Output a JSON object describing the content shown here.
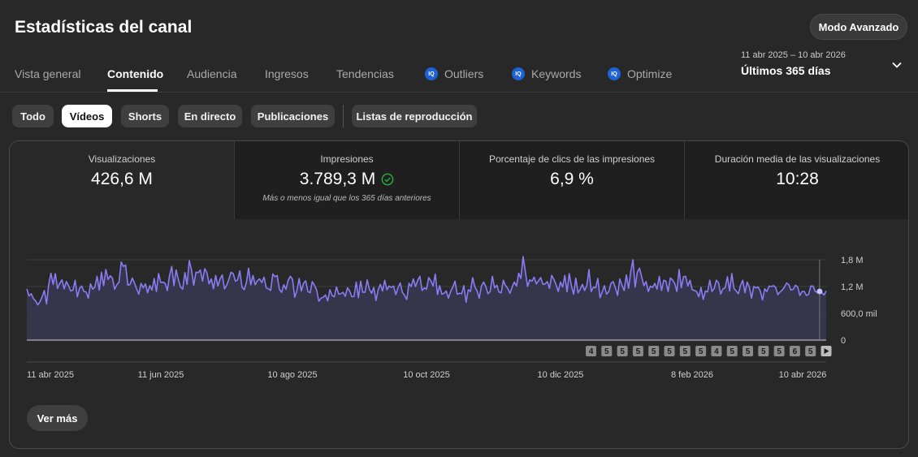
{
  "header": {
    "title": "Estadísticas del canal",
    "advanced_button": "Modo Avanzado"
  },
  "tabs": [
    {
      "label": "Vista general",
      "active": false,
      "badge": false
    },
    {
      "label": "Contenido",
      "active": true,
      "badge": false
    },
    {
      "label": "Audiencia",
      "active": false,
      "badge": false
    },
    {
      "label": "Ingresos",
      "active": false,
      "badge": false
    },
    {
      "label": "Tendencias",
      "active": false,
      "badge": false
    },
    {
      "label": "Outliers",
      "active": false,
      "badge": true
    },
    {
      "label": "Keywords",
      "active": false,
      "badge": true
    },
    {
      "label": "Optimize",
      "active": false,
      "badge": true
    }
  ],
  "badge_text": "IQ",
  "date_selector": {
    "range": "11 abr 2025 – 10 abr 2026",
    "period": "Últimos 365 días"
  },
  "filters": [
    {
      "label": "Todo",
      "active": false
    },
    {
      "label": "Vídeos",
      "active": true
    },
    {
      "label": "Shorts",
      "active": false
    },
    {
      "label": "En directo",
      "active": false
    },
    {
      "label": "Publicaciones",
      "active": false
    },
    {
      "label": "Listas de reproducción",
      "active": false
    }
  ],
  "metrics": [
    {
      "label": "Visualizaciones",
      "value": "426,6 M",
      "note": ""
    },
    {
      "label": "Impresiones",
      "value": "3.789,3 M",
      "note": "Más o menos igual que los 365 días anteriores",
      "check": true
    },
    {
      "label": "Porcentaje de clics de las impresiones",
      "value": "6,9 %",
      "note": ""
    },
    {
      "label": "Duración media de las visualizaciones",
      "value": "10:28",
      "note": ""
    }
  ],
  "chart_data": {
    "type": "area",
    "series": [
      {
        "values": [
          1.15,
          0.99,
          1.04,
          0.93,
          0.88,
          0.79,
          0.86,
          0.97,
          1.11,
          0.81,
          1.25,
          1.5,
          1.25,
          1.49,
          1.16,
          1.27,
          1.35,
          1.15,
          1.31,
          1.22,
          1.1,
          1.12,
          1.34,
          0.97,
          1.16,
          1.21,
          1.09,
          1.08,
          0.94,
          1.26,
          1.14,
          1.19,
          1.43,
          1.12,
          1.52,
          1.22,
          1.58,
          1.36,
          1.44,
          1.39,
          1.14,
          1.24,
          1.3,
          1.75,
          1.65,
          1.68,
          1.23,
          1.25,
          1.39,
          1.28,
          1.15,
          1.03,
          1.27,
          1.17,
          1.26,
          1.06,
          1.22,
          1.12,
          1.38,
          1.09,
          1.49,
          1.29,
          1.3,
          1.27,
          1.11,
          1.45,
          1.65,
          1.22,
          1.57,
          1.36,
          1.19,
          1.14,
          1.51,
          1.25,
          1.78,
          1.57,
          1.23,
          1.52,
          1.51,
          1.57,
          1.32,
          1.6,
          1.51,
          1.26,
          1.37,
          1.15,
          1.45,
          1.21,
          1.37,
          1.46,
          1.15,
          1.23,
          1.36,
          1.52,
          1.49,
          1.32,
          1.35,
          1.55,
          1.19,
          1.13,
          1.29,
          1.61,
          1.24,
          1.45,
          1.24,
          1.33,
          1.37,
          1.29,
          1.41,
          1.17,
          1.15,
          1.11,
          1.48,
          1.42,
          1.45,
          1.14,
          1.07,
          1.24,
          1.14,
          1.34,
          1.43,
          1.36,
          0.96,
          1.11,
          1.38,
          1.1,
          1.27,
          1.33,
          1.09,
          1.06,
          1.31,
          1.23,
          1.12,
          0.87,
          0.94,
          0.96,
          1.01,
          0.88,
          1.13,
          1.0,
          0.97,
          1.19,
          1.03,
          1.04,
          1.07,
          0.98,
          1.17,
          1.1,
          0.97,
          0.98,
          1.3,
          0.95,
          1.32,
          1.07,
          1.07,
          1.35,
          1.14,
          1.05,
          1.18,
          0.89,
          1.13,
          1.25,
          1.1,
          1.34,
          1.13,
          1.21,
          1.18,
          1.21,
          1.02,
          1.17,
          1.28,
          1.07,
          1.0,
          0.91,
          1.27,
          1.2,
          1.37,
          1.2,
          1.34,
          1.43,
          1.11,
          1.17,
          1.14,
          1.4,
          1.33,
          1.21,
          1.48,
          1.02,
          1.22,
          1.03,
          1.05,
          1.1,
          0.94,
          1.09,
          1.19,
          1.32,
          1.03,
          1.05,
          1.04,
          1.22,
          0.85,
          1.13,
          1.09,
          1.4,
          1.19,
          1.11,
          0.94,
          1.21,
          1.3,
          1.2,
          1.04,
          1.09,
          1.43,
          1.17,
          1.23,
          1.08,
          1.06,
          1.34,
          1.22,
          1.16,
          1.05,
          1.19,
          1.3,
          1.21,
          1.5,
          1.38,
          1.87,
          1.54,
          1.2,
          1.35,
          1.32,
          1.41,
          1.26,
          1.33,
          1.4,
          1.25,
          1.26,
          1.31,
          1.16,
          1.45,
          1.36,
          1.24,
          1.09,
          1.3,
          1.19,
          1.45,
          1.08,
          1.49,
          1.21,
          1.03,
          1.39,
          1.06,
          1.14,
          1.25,
          1.11,
          1.22,
          1.58,
          1.09,
          1.19,
          1.17,
          1.38,
          0.95,
          1.08,
          1.22,
          1.03,
          1.09,
          1.27,
          1.31,
          1.17,
          1.0,
          1.37,
          1.23,
          1.11,
          1.46,
          1.16,
          1.53,
          1.8,
          1.19,
          1.52,
          1.61,
          1.41,
          1.22,
          1.31,
          1.09,
          1.21,
          1.18,
          1.27,
          1.14,
          1.43,
          1.11,
          1.34,
          1.32,
          1.09,
          1.39,
          1.35,
          1.27,
          1.09,
          1.58,
          1.17,
          1.42,
          1.43,
          1.21,
          1.34,
          1.13,
          1.11,
          1.09,
          0.97,
          1.18,
          0.91,
          1.1,
          1.08,
          1.34,
          1.09,
          1.16,
          1.34,
          1.28,
          1.03,
          1.15,
          1.17,
          1.42,
          1.1,
          1.49,
          1.16,
          1.1,
          1.04,
          1.23,
          1.34,
          1.06,
          1.3,
          1.19,
          0.94,
          1.2,
          1.17,
          1.19,
          1.1,
          0.9,
          1.15,
          1.09,
          1.21,
          1.2,
          1.22,
          1.18,
          1.02,
          1.08,
          1.12,
          1.19,
          1.28,
          1.24,
          1.12,
          1.14,
          1.23,
          1.19,
          1.0,
          1.09,
          1.09,
          1.0,
          1.03,
          1.21,
          1.21,
          1.09,
          1.07,
          1.09,
          1.06,
          1.01,
          1.1
        ]
      }
    ],
    "ylim": [
      0,
      1.8
    ],
    "y_ticks": [
      "1,8 M",
      "1,2 M",
      "600,0 mil",
      "0"
    ],
    "x_ticks": [
      "11 abr 2025",
      "11 jun 2025",
      "10 ago 2025",
      "10 oct 2025",
      "10 dic 2025",
      "8 feb 2026",
      "10 abr 2026"
    ],
    "upload_markers": [
      "4",
      "5",
      "5",
      "5",
      "5",
      "5",
      "5",
      "5",
      "4",
      "5",
      "5",
      "5",
      "5",
      "6",
      "5"
    ],
    "line_color": "#8b7cf6",
    "fill_color": "#383650",
    "grid": true
  },
  "more_button": "Ver más"
}
